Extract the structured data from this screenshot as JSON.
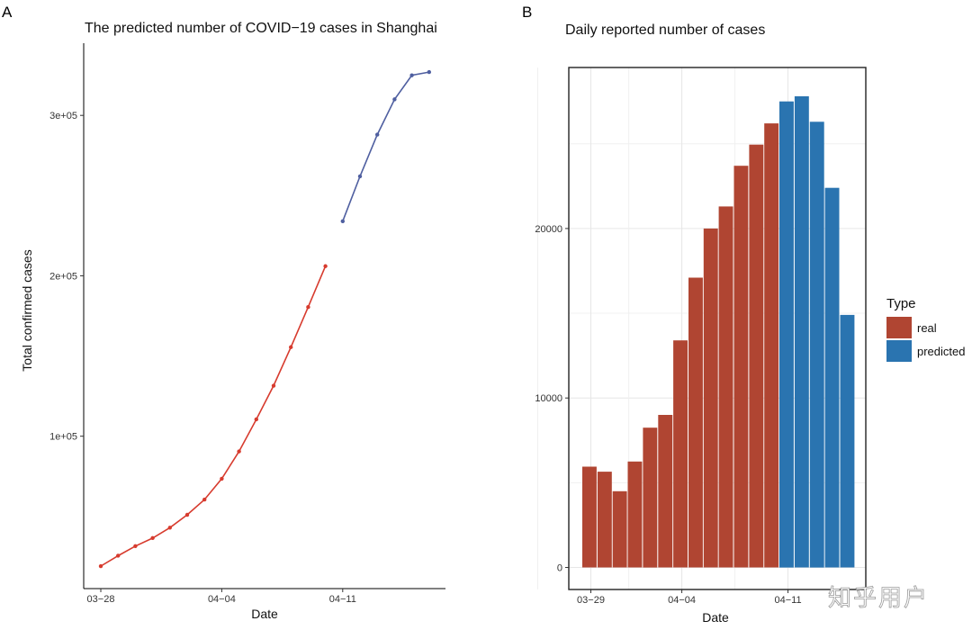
{
  "panels": {
    "a_label": "A",
    "b_label": "B"
  },
  "watermark": "知乎用户",
  "colors": {
    "real_line": "#d73b2e",
    "predicted_line": "#4f5fa0",
    "real_bar": "#b04532",
    "predicted_bar": "#2a74b0",
    "grid": "#e6e6e6"
  },
  "chart_data": [
    {
      "type": "line",
      "title": "The predicted number of COVID−19 cases in Shanghai",
      "xlabel": "Date",
      "ylabel": "Total confirmed cases",
      "x_ticks": [
        "03−28",
        "04−04",
        "04−11"
      ],
      "y_ticks": [
        "1e+05",
        "2e+05",
        "3e+05"
      ],
      "y_tick_values": [
        100000,
        200000,
        300000
      ],
      "ylim": [
        5000,
        345000
      ],
      "grid": false,
      "series": [
        {
          "key": "real",
          "x": [
            "03-28",
            "03-29",
            "03-30",
            "03-31",
            "04-01",
            "04-02",
            "04-03",
            "04-04",
            "04-05",
            "04-06",
            "04-07",
            "04-08",
            "04-09",
            "04-10"
          ],
          "values": [
            19000,
            25500,
            31500,
            36500,
            43000,
            51000,
            60500,
            73500,
            90500,
            110500,
            131500,
            155500,
            180500,
            206000
          ]
        },
        {
          "key": "predicted",
          "x": [
            "04-11",
            "04-12",
            "04-13",
            "04-14",
            "04-15",
            "04-16"
          ],
          "values": [
            234000,
            262000,
            288000,
            310000,
            325000,
            327000
          ]
        }
      ]
    },
    {
      "type": "bar",
      "title": "Daily reported number of cases",
      "xlabel": "Date",
      "ylabel": "",
      "x_ticks": [
        "03−29",
        "04−04",
        "04−11"
      ],
      "y_ticks": [
        "0",
        "10000",
        "20000"
      ],
      "y_tick_values": [
        0,
        10000,
        20000
      ],
      "ylim": [
        -1300,
        29500
      ],
      "grid": true,
      "legend": {
        "title": "Type",
        "position": "right",
        "entries": [
          {
            "key": "real",
            "label": "real"
          },
          {
            "key": "predicted",
            "label": "predicted"
          }
        ]
      },
      "categories": [
        "03-29",
        "03-30",
        "03-31",
        "04-01",
        "04-02",
        "04-03",
        "04-04",
        "04-05",
        "04-06",
        "04-07",
        "04-08",
        "04-09",
        "04-10",
        "04-11",
        "04-12",
        "04-13",
        "04-14",
        "04-15"
      ],
      "types": [
        "real",
        "real",
        "real",
        "real",
        "real",
        "real",
        "real",
        "real",
        "real",
        "real",
        "real",
        "real",
        "real",
        "predicted",
        "predicted",
        "predicted",
        "predicted",
        "predicted"
      ],
      "values": [
        5950,
        5650,
        4500,
        6250,
        8250,
        9000,
        13400,
        17100,
        20000,
        21300,
        23700,
        24950,
        26200,
        27500,
        27800,
        26300,
        22400,
        14900
      ]
    }
  ]
}
